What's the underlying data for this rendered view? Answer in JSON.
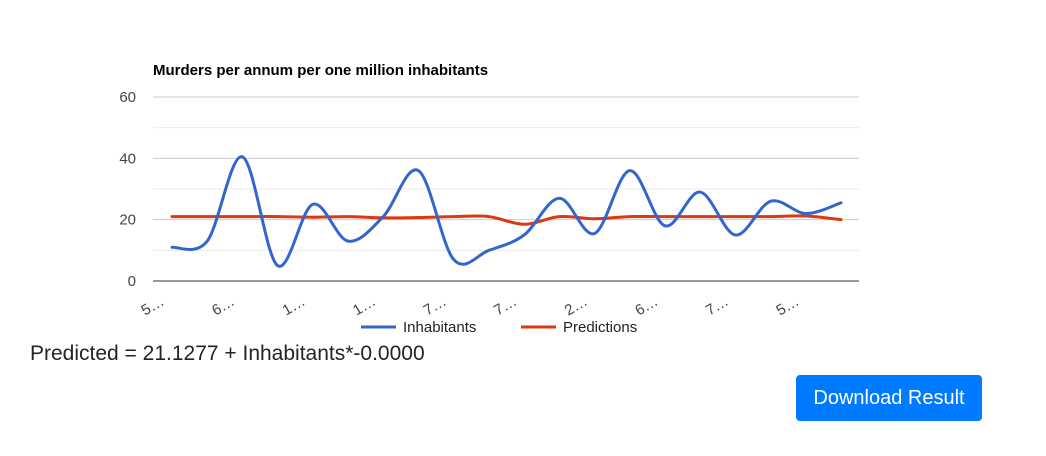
{
  "chart_data": {
    "type": "line",
    "title": "Murders per annum per one million inhabitants",
    "xlabel": "",
    "ylabel": "",
    "ylim": [
      0,
      60
    ],
    "yticks": [
      "0",
      "20",
      "40",
      "60"
    ],
    "x_tick_labels": [
      "5…",
      "6…",
      "1…",
      "1…",
      "7…",
      "7…",
      "2…",
      "6…",
      "7…",
      "5…"
    ],
    "legend_position": "bottom",
    "series": [
      {
        "name": "Inhabitants",
        "color": "#3366cc",
        "values": [
          11,
          13,
          40.5,
          5,
          25,
          13,
          21,
          36,
          7,
          10,
          15,
          27,
          15.5,
          36,
          18,
          29,
          15,
          26,
          22,
          25.5
        ]
      },
      {
        "name": "Predictions",
        "color": "#dc3912",
        "values": [
          21,
          21,
          21,
          21,
          20.8,
          21,
          20.6,
          20.7,
          21,
          21,
          18.5,
          21,
          20.3,
          21,
          21,
          21,
          21,
          21,
          21.2,
          20
        ]
      }
    ]
  },
  "result": {
    "equation": "Predicted = 21.1277 + Inhabitants*-0.0000"
  },
  "actions": {
    "download_label": "Download Result",
    "download_color": "#007bff"
  }
}
